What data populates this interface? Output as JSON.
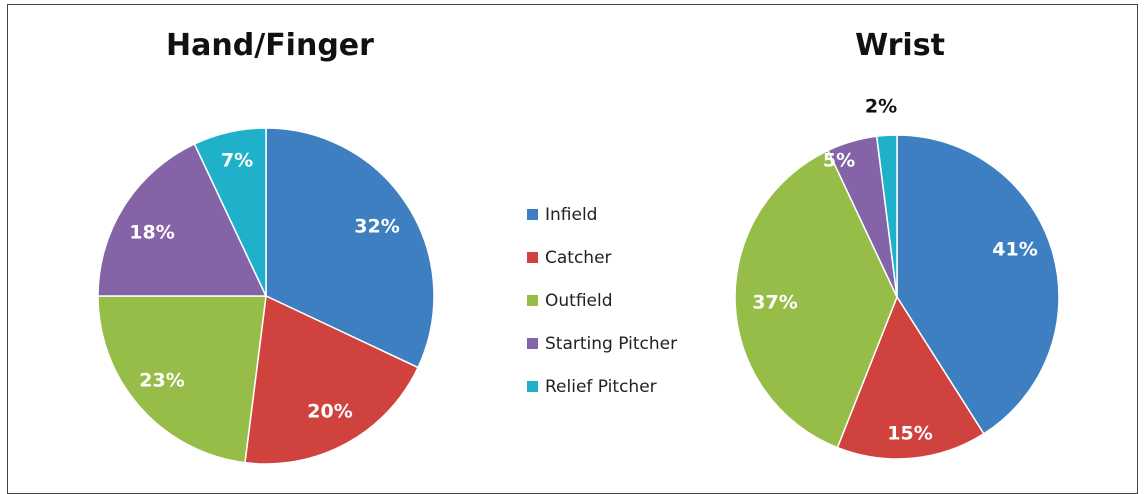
{
  "legend": [
    {
      "label": "Infield",
      "color": "#3e7fc1"
    },
    {
      "label": "Catcher",
      "color": "#d0423e"
    },
    {
      "label": "Outfield",
      "color": "#96bd48"
    },
    {
      "label": "Starting Pitcher",
      "color": "#8464a6"
    },
    {
      "label": "Relief Pitcher",
      "color": "#1fb1c9"
    }
  ],
  "chart_data": [
    {
      "type": "pie",
      "title": "Hand/Finger",
      "categories": [
        "Infield",
        "Catcher",
        "Outfield",
        "Starting Pitcher",
        "Relief Pitcher"
      ],
      "values": [
        32,
        20,
        23,
        18,
        7
      ],
      "labels": [
        "32%",
        "20%",
        "23%",
        "18%",
        "7%"
      ],
      "label_colors": [
        "#ffffff",
        "#ffffff",
        "#ffffff",
        "#ffffff",
        "#ffffff"
      ]
    },
    {
      "type": "pie",
      "title": "Wrist",
      "categories": [
        "Infield",
        "Catcher",
        "Outfield",
        "Starting Pitcher",
        "Relief Pitcher"
      ],
      "values": [
        41,
        15,
        37,
        5,
        2
      ],
      "labels": [
        "41%",
        "15%",
        "37%",
        "5%",
        "2%"
      ],
      "label_colors": [
        "#ffffff",
        "#ffffff",
        "#ffffff",
        "#ffffff",
        "#111111"
      ]
    }
  ]
}
